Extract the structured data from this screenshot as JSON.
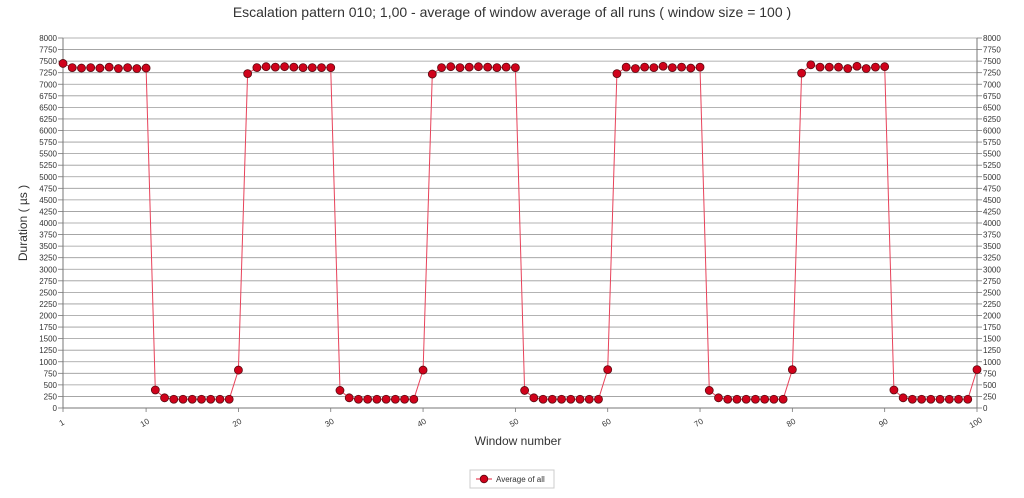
{
  "chart_data": {
    "type": "line",
    "title": "Escalation pattern 010; 1,00 - average of window average of all runs ( window size = 100 )",
    "xlabel": "Window number",
    "ylabel": "Duration ( µs )",
    "xlim": [
      1,
      100
    ],
    "ylim": [
      0,
      8000
    ],
    "y_ticks": [
      "0",
      "250",
      "500",
      "750",
      "1000",
      "1250",
      "1500",
      "1750",
      "2000",
      "2250",
      "2500",
      "2750",
      "3000",
      "3250",
      "3500",
      "3750",
      "4000",
      "4250",
      "4500",
      "4750",
      "5000",
      "5250",
      "5500",
      "5750",
      "6000",
      "6250",
      "6500",
      "6750",
      "7000",
      "7250",
      "7500",
      "7750",
      "8000"
    ],
    "x_ticks": [
      "1",
      "10",
      "20",
      "30",
      "40",
      "50",
      "60",
      "70",
      "80",
      "90",
      "100"
    ],
    "x_tick_values": [
      1,
      10,
      20,
      30,
      40,
      50,
      60,
      70,
      80,
      90,
      100
    ],
    "grid": true,
    "legend_position": "bottom",
    "line_color": "#e8425a",
    "marker_color": "#d0021b",
    "series": [
      {
        "name": "Average of all",
        "x": [
          1,
          2,
          3,
          4,
          5,
          6,
          7,
          8,
          9,
          10,
          11,
          12,
          13,
          14,
          15,
          16,
          17,
          18,
          19,
          20,
          21,
          22,
          23,
          24,
          25,
          26,
          27,
          28,
          29,
          30,
          31,
          32,
          33,
          34,
          35,
          36,
          37,
          38,
          39,
          40,
          41,
          42,
          43,
          44,
          45,
          46,
          47,
          48,
          49,
          50,
          51,
          52,
          53,
          54,
          55,
          56,
          57,
          58,
          59,
          60,
          61,
          62,
          63,
          64,
          65,
          66,
          67,
          68,
          69,
          70,
          71,
          72,
          73,
          74,
          75,
          76,
          77,
          78,
          79,
          80,
          81,
          82,
          83,
          84,
          85,
          86,
          87,
          88,
          89,
          90,
          91,
          92,
          93,
          94,
          95,
          96,
          97,
          98,
          99,
          100
        ],
        "values": [
          7450,
          7360,
          7350,
          7360,
          7350,
          7370,
          7340,
          7360,
          7340,
          7350,
          390,
          220,
          190,
          190,
          190,
          190,
          190,
          190,
          190,
          820,
          7230,
          7360,
          7380,
          7370,
          7380,
          7370,
          7360,
          7360,
          7360,
          7360,
          380,
          220,
          190,
          190,
          190,
          190,
          190,
          190,
          190,
          820,
          7220,
          7360,
          7380,
          7360,
          7370,
          7380,
          7370,
          7360,
          7370,
          7360,
          380,
          220,
          190,
          190,
          190,
          190,
          190,
          190,
          190,
          830,
          7230,
          7370,
          7340,
          7370,
          7360,
          7390,
          7360,
          7370,
          7350,
          7370,
          380,
          220,
          190,
          190,
          190,
          190,
          190,
          190,
          190,
          830,
          7240,
          7420,
          7370,
          7370,
          7370,
          7340,
          7390,
          7340,
          7370,
          7380,
          390,
          220,
          190,
          190,
          190,
          190,
          190,
          190,
          190,
          830
        ]
      }
    ]
  }
}
